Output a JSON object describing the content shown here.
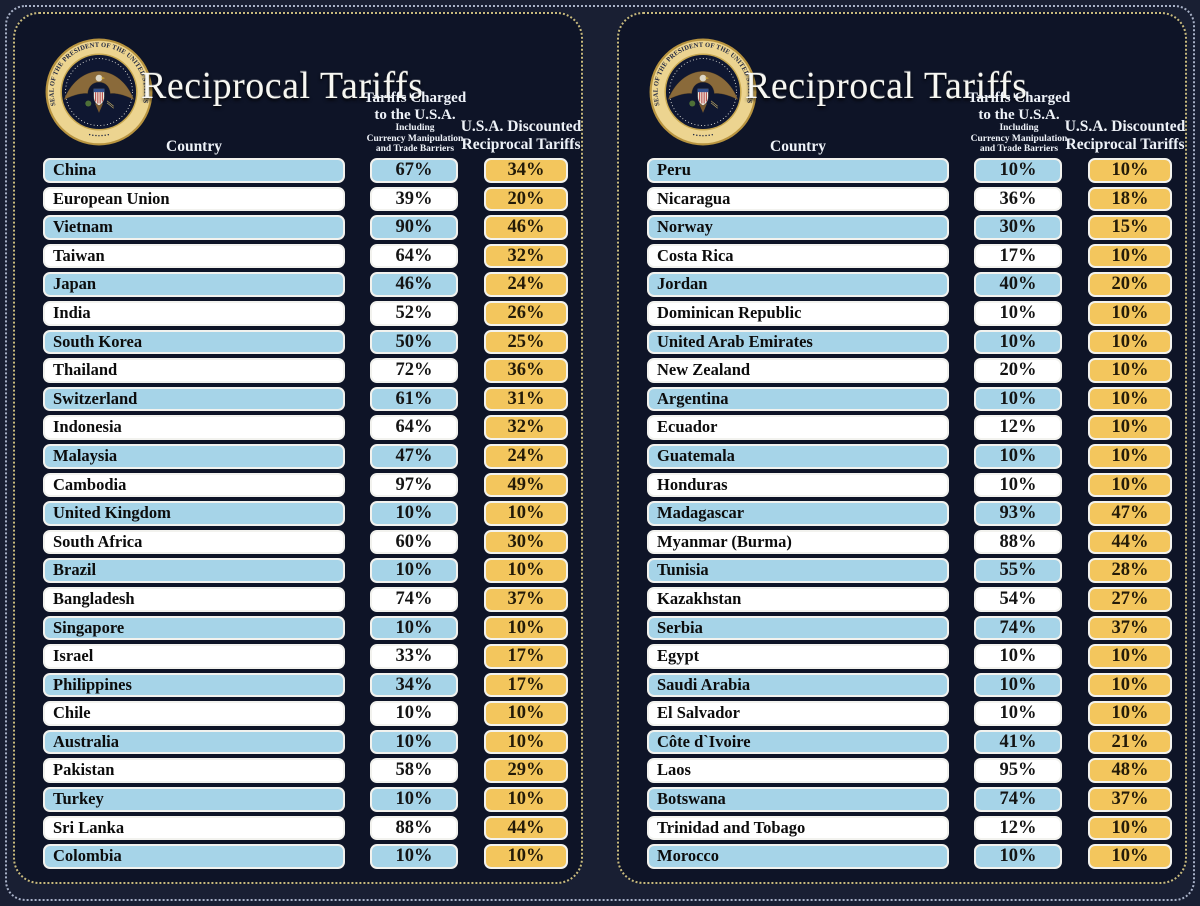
{
  "title": "Reciprocal Tariffs",
  "seal": {
    "ring_text": "SEAL OF THE PRESIDENT OF THE UNITED STATES",
    "ring_dots": "• • • • • • •"
  },
  "columns": {
    "country": "Country",
    "charged_line1": "Tariffs Charged",
    "charged_line2": "to the U.S.A.",
    "charged_sub1": "Including",
    "charged_sub2": "Currency Manipulation",
    "charged_sub3": "and Trade Barriers",
    "discounted_line1": "U.S.A. Discounted",
    "discounted_line2": "Reciprocal Tariffs"
  },
  "colors": {
    "page_bg": "#191f33",
    "panel_bg": "#0e1427",
    "panel_dots": "#c8ba7e",
    "outer_dots": "#a9b2c8",
    "row_blue": "#a6d4e8",
    "row_white": "#ffffff",
    "cell_gold": "#f3c65d"
  },
  "panels": [
    {
      "rows": [
        {
          "country": "China",
          "charged": "67%",
          "discounted": "34%"
        },
        {
          "country": "European Union",
          "charged": "39%",
          "discounted": "20%"
        },
        {
          "country": "Vietnam",
          "charged": "90%",
          "discounted": "46%"
        },
        {
          "country": "Taiwan",
          "charged": "64%",
          "discounted": "32%"
        },
        {
          "country": "Japan",
          "charged": "46%",
          "discounted": "24%"
        },
        {
          "country": "India",
          "charged": "52%",
          "discounted": "26%"
        },
        {
          "country": "South Korea",
          "charged": "50%",
          "discounted": "25%"
        },
        {
          "country": "Thailand",
          "charged": "72%",
          "discounted": "36%"
        },
        {
          "country": "Switzerland",
          "charged": "61%",
          "discounted": "31%"
        },
        {
          "country": "Indonesia",
          "charged": "64%",
          "discounted": "32%"
        },
        {
          "country": "Malaysia",
          "charged": "47%",
          "discounted": "24%"
        },
        {
          "country": "Cambodia",
          "charged": "97%",
          "discounted": "49%"
        },
        {
          "country": "United Kingdom",
          "charged": "10%",
          "discounted": "10%"
        },
        {
          "country": "South Africa",
          "charged": "60%",
          "discounted": "30%"
        },
        {
          "country": "Brazil",
          "charged": "10%",
          "discounted": "10%"
        },
        {
          "country": "Bangladesh",
          "charged": "74%",
          "discounted": "37%"
        },
        {
          "country": "Singapore",
          "charged": "10%",
          "discounted": "10%"
        },
        {
          "country": "Israel",
          "charged": "33%",
          "discounted": "17%"
        },
        {
          "country": "Philippines",
          "charged": "34%",
          "discounted": "17%"
        },
        {
          "country": "Chile",
          "charged": "10%",
          "discounted": "10%"
        },
        {
          "country": "Australia",
          "charged": "10%",
          "discounted": "10%"
        },
        {
          "country": "Pakistan",
          "charged": "58%",
          "discounted": "29%"
        },
        {
          "country": "Turkey",
          "charged": "10%",
          "discounted": "10%"
        },
        {
          "country": "Sri Lanka",
          "charged": "88%",
          "discounted": "44%"
        },
        {
          "country": "Colombia",
          "charged": "10%",
          "discounted": "10%"
        }
      ]
    },
    {
      "rows": [
        {
          "country": "Peru",
          "charged": "10%",
          "discounted": "10%"
        },
        {
          "country": "Nicaragua",
          "charged": "36%",
          "discounted": "18%"
        },
        {
          "country": "Norway",
          "charged": "30%",
          "discounted": "15%"
        },
        {
          "country": "Costa Rica",
          "charged": "17%",
          "discounted": "10%"
        },
        {
          "country": "Jordan",
          "charged": "40%",
          "discounted": "20%"
        },
        {
          "country": "Dominican Republic",
          "charged": "10%",
          "discounted": "10%"
        },
        {
          "country": "United Arab Emirates",
          "charged": "10%",
          "discounted": "10%"
        },
        {
          "country": "New Zealand",
          "charged": "20%",
          "discounted": "10%"
        },
        {
          "country": "Argentina",
          "charged": "10%",
          "discounted": "10%"
        },
        {
          "country": "Ecuador",
          "charged": "12%",
          "discounted": "10%"
        },
        {
          "country": "Guatemala",
          "charged": "10%",
          "discounted": "10%"
        },
        {
          "country": "Honduras",
          "charged": "10%",
          "discounted": "10%"
        },
        {
          "country": "Madagascar",
          "charged": "93%",
          "discounted": "47%"
        },
        {
          "country": "Myanmar (Burma)",
          "charged": "88%",
          "discounted": "44%"
        },
        {
          "country": "Tunisia",
          "charged": "55%",
          "discounted": "28%"
        },
        {
          "country": "Kazakhstan",
          "charged": "54%",
          "discounted": "27%"
        },
        {
          "country": "Serbia",
          "charged": "74%",
          "discounted": "37%"
        },
        {
          "country": "Egypt",
          "charged": "10%",
          "discounted": "10%"
        },
        {
          "country": "Saudi Arabia",
          "charged": "10%",
          "discounted": "10%"
        },
        {
          "country": "El Salvador",
          "charged": "10%",
          "discounted": "10%"
        },
        {
          "country": "Côte d`Ivoire",
          "charged": "41%",
          "discounted": "21%"
        },
        {
          "country": "Laos",
          "charged": "95%",
          "discounted": "48%"
        },
        {
          "country": "Botswana",
          "charged": "74%",
          "discounted": "37%"
        },
        {
          "country": "Trinidad and Tobago",
          "charged": "12%",
          "discounted": "10%"
        },
        {
          "country": "Morocco",
          "charged": "10%",
          "discounted": "10%"
        }
      ]
    }
  ],
  "chart_data": {
    "type": "table",
    "title": "Reciprocal Tariffs",
    "columns": [
      "Country",
      "Tariffs Charged to the U.S.A. Including Currency Manipulation and Trade Barriers",
      "U.S.A. Discounted Reciprocal Tariffs"
    ],
    "rows": [
      [
        "China",
        "67%",
        "34%"
      ],
      [
        "European Union",
        "39%",
        "20%"
      ],
      [
        "Vietnam",
        "90%",
        "46%"
      ],
      [
        "Taiwan",
        "64%",
        "32%"
      ],
      [
        "Japan",
        "46%",
        "24%"
      ],
      [
        "India",
        "52%",
        "26%"
      ],
      [
        "South Korea",
        "50%",
        "25%"
      ],
      [
        "Thailand",
        "72%",
        "36%"
      ],
      [
        "Switzerland",
        "61%",
        "31%"
      ],
      [
        "Indonesia",
        "64%",
        "32%"
      ],
      [
        "Malaysia",
        "47%",
        "24%"
      ],
      [
        "Cambodia",
        "97%",
        "49%"
      ],
      [
        "United Kingdom",
        "10%",
        "10%"
      ],
      [
        "South Africa",
        "60%",
        "30%"
      ],
      [
        "Brazil",
        "10%",
        "10%"
      ],
      [
        "Bangladesh",
        "74%",
        "37%"
      ],
      [
        "Singapore",
        "10%",
        "10%"
      ],
      [
        "Israel",
        "33%",
        "17%"
      ],
      [
        "Philippines",
        "34%",
        "17%"
      ],
      [
        "Chile",
        "10%",
        "10%"
      ],
      [
        "Australia",
        "10%",
        "10%"
      ],
      [
        "Pakistan",
        "58%",
        "29%"
      ],
      [
        "Turkey",
        "10%",
        "10%"
      ],
      [
        "Sri Lanka",
        "88%",
        "44%"
      ],
      [
        "Colombia",
        "10%",
        "10%"
      ],
      [
        "Peru",
        "10%",
        "10%"
      ],
      [
        "Nicaragua",
        "36%",
        "18%"
      ],
      [
        "Norway",
        "30%",
        "15%"
      ],
      [
        "Costa Rica",
        "17%",
        "10%"
      ],
      [
        "Jordan",
        "40%",
        "20%"
      ],
      [
        "Dominican Republic",
        "10%",
        "10%"
      ],
      [
        "United Arab Emirates",
        "10%",
        "10%"
      ],
      [
        "New Zealand",
        "20%",
        "10%"
      ],
      [
        "Argentina",
        "10%",
        "10%"
      ],
      [
        "Ecuador",
        "12%",
        "10%"
      ],
      [
        "Guatemala",
        "10%",
        "10%"
      ],
      [
        "Honduras",
        "10%",
        "10%"
      ],
      [
        "Madagascar",
        "93%",
        "47%"
      ],
      [
        "Myanmar (Burma)",
        "88%",
        "44%"
      ],
      [
        "Tunisia",
        "55%",
        "28%"
      ],
      [
        "Kazakhstan",
        "54%",
        "27%"
      ],
      [
        "Serbia",
        "74%",
        "37%"
      ],
      [
        "Egypt",
        "10%",
        "10%"
      ],
      [
        "Saudi Arabia",
        "10%",
        "10%"
      ],
      [
        "El Salvador",
        "10%",
        "10%"
      ],
      [
        "Côte d`Ivoire",
        "41%",
        "21%"
      ],
      [
        "Laos",
        "95%",
        "48%"
      ],
      [
        "Botswana",
        "74%",
        "37%"
      ],
      [
        "Trinidad and Tobago",
        "12%",
        "10%"
      ],
      [
        "Morocco",
        "10%",
        "10%"
      ]
    ],
    "layout": "two side-by-side panels of 25 rows each; rows alternate light-blue/white; third column always gold"
  }
}
